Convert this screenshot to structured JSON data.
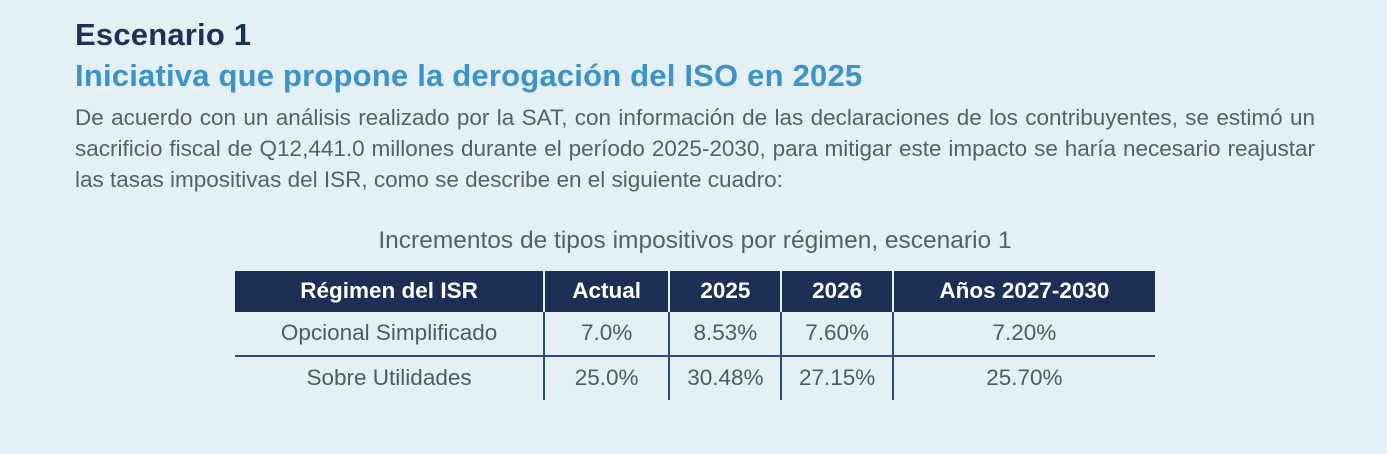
{
  "page": {
    "background_color": "#e4f0f3",
    "navy_color": "#1e2f55",
    "blue_accent_color": "#3b93ca",
    "text_color": "#566069",
    "rule_color": "#2d4b7e"
  },
  "heading": {
    "title": "Escenario 1",
    "subtitle": "Iniciativa que propone la derogación del ISO en 2025"
  },
  "paragraph": "De acuerdo con un análisis realizado por la SAT, con información de las declaraciones de los contribuyentes, se estimó un sacrificio fiscal de Q12,441.0 millones durante el período 2025-2030, para mitigar este impacto se haría necesario reajustar las tasas impositivas del ISR, como se describe en el siguiente cuadro:",
  "table": {
    "title": "Incrementos de tipos impositivos por régimen, escenario 1",
    "headers": [
      "Régimen del ISR",
      "Actual",
      "2025",
      "2026",
      "Años 2027-2030"
    ],
    "rows": [
      [
        "Opcional Simplificado",
        "7.0%",
        "8.53%",
        "7.60%",
        "7.20%"
      ],
      [
        "Sobre Utilidades",
        "25.0%",
        "30.48%",
        "27.15%",
        "25.70%"
      ]
    ]
  }
}
